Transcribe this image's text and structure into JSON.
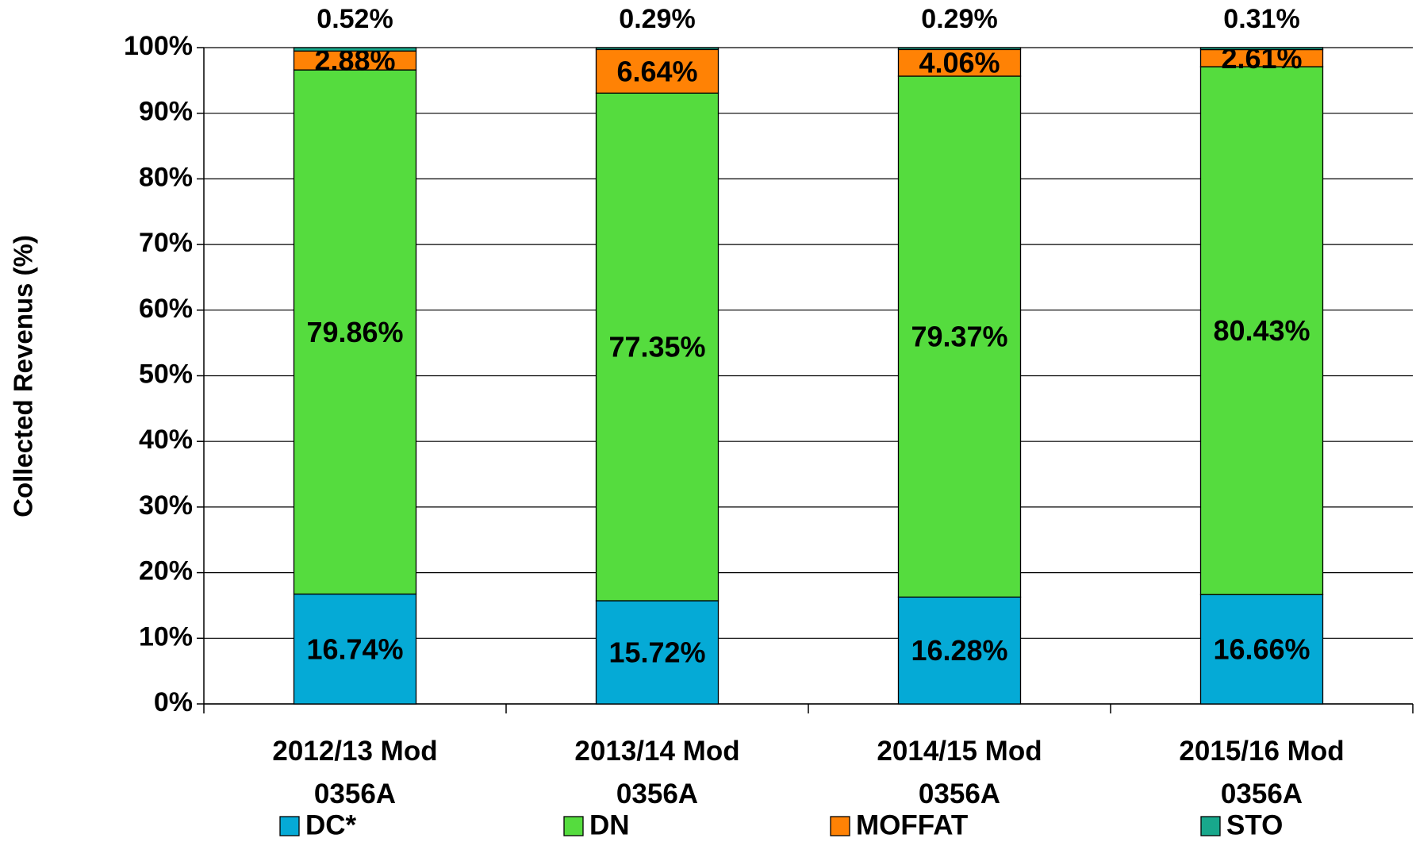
{
  "chart_data": {
    "type": "stacked_bar",
    "y_axis_label": "Collected Revenus (%)",
    "categories": [
      "2012/13 Mod 0356A",
      "2013/14 Mod 0356A",
      "2014/15 Mod 0356A",
      "2015/16 Mod 0356A"
    ],
    "series": [
      {
        "name": "DC*",
        "color": "#05aad6",
        "values": [
          16.74,
          15.72,
          16.28,
          16.66
        ],
        "value_labels": [
          "16.74%",
          "15.72%",
          "16.28%",
          "16.66%"
        ]
      },
      {
        "name": "DN",
        "color": "#55dc3e",
        "values": [
          79.86,
          77.35,
          79.37,
          80.43
        ],
        "value_labels": [
          "79.86%",
          "77.35%",
          "79.37%",
          "80.43%"
        ]
      },
      {
        "name": "MOFFAT",
        "color": "#ff8205",
        "values": [
          2.88,
          6.64,
          4.06,
          2.61
        ],
        "value_labels": [
          "2.88%",
          "6.64%",
          "4.06%",
          "2.61%"
        ]
      },
      {
        "name": "STO",
        "color": "#18a88c",
        "values": [
          0.52,
          0.29,
          0.29,
          0.31
        ],
        "value_labels": [
          "0.52%",
          "0.29%",
          "0.29%",
          "0.31%"
        ]
      }
    ],
    "ylim": [
      0,
      100
    ],
    "yticks": [
      {
        "value": 0,
        "label": "0%"
      },
      {
        "value": 10,
        "label": "10%"
      },
      {
        "value": 20,
        "label": "20%"
      },
      {
        "value": 30,
        "label": "30%"
      },
      {
        "value": 40,
        "label": "40%"
      },
      {
        "value": 50,
        "label": "50%"
      },
      {
        "value": 60,
        "label": "60%"
      },
      {
        "value": 70,
        "label": "70%"
      },
      {
        "value": 80,
        "label": "80%"
      },
      {
        "value": 90,
        "label": "90%"
      },
      {
        "value": 100,
        "label": "100%"
      }
    ],
    "grid": true,
    "legend": "bottom"
  }
}
